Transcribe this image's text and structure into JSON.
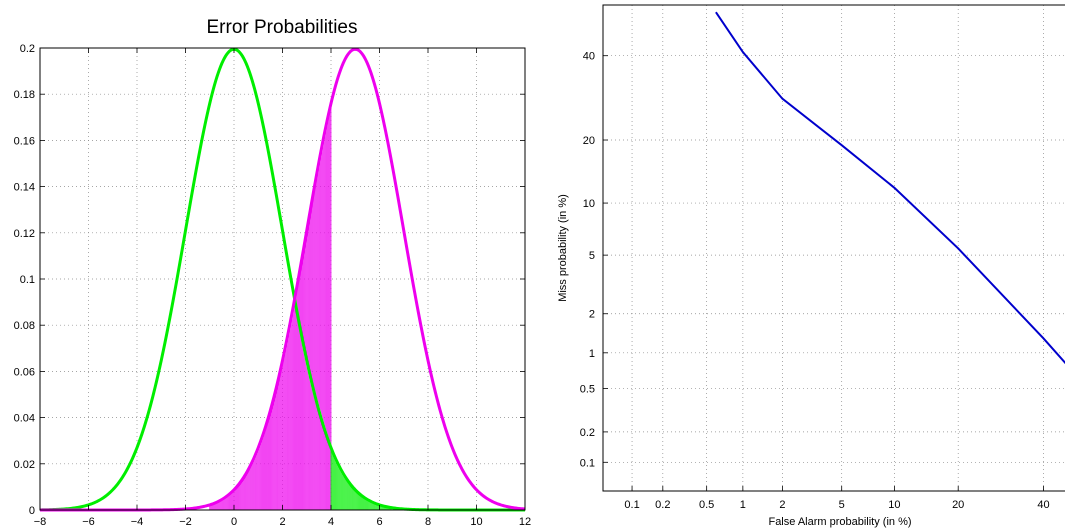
{
  "chart_data": [
    {
      "type": "line",
      "title": "Error Probabilities",
      "xlabel": "",
      "ylabel": "",
      "xlim": [
        -8,
        12
      ],
      "ylim": [
        0,
        0.2
      ],
      "grid": true,
      "xticks": [
        -8,
        -6,
        -4,
        -2,
        0,
        2,
        4,
        6,
        8,
        10,
        12
      ],
      "xtick_labels": [
        "−8",
        "−6",
        "−4",
        "−2",
        "0",
        "2",
        "4",
        "6",
        "8",
        "10",
        "12"
      ],
      "yticks": [
        0,
        0.02,
        0.04,
        0.06,
        0.08,
        0.1,
        0.12,
        0.14,
        0.16,
        0.18,
        0.2
      ],
      "ytick_labels": [
        "0",
        "0.02",
        "0.04",
        "0.06",
        "0.08",
        "0.1",
        "0.12",
        "0.14",
        "0.16",
        "0.18",
        "0.2"
      ],
      "series": [
        {
          "distribution": "normal",
          "mean": 0,
          "std": 2,
          "color": "#00ee00"
        },
        {
          "distribution": "normal",
          "mean": 5,
          "std": 2,
          "color": "#ee00ee"
        }
      ],
      "shaded_regions": [
        {
          "series_index": 1,
          "x_range": [
            -1,
            4
          ],
          "style": "vertical-lines",
          "color": "#ee00ee"
        },
        {
          "series_index": 0,
          "x_range": [
            4,
            6.5
          ],
          "style": "vertical-lines",
          "color": "#00ee00"
        }
      ]
    },
    {
      "type": "line",
      "title": "",
      "xlabel": "False Alarm probability (in %)",
      "ylabel": "Miss probability (in %)",
      "scale": "normal-deviate",
      "xlim": [
        0.05,
        48
      ],
      "ylim": [
        0.05,
        54
      ],
      "grid": true,
      "xticks": [
        0.1,
        0.2,
        0.5,
        1,
        2,
        5,
        10,
        20,
        40
      ],
      "xtick_labels": [
        "0.1",
        "0.2",
        "0.5",
        "1",
        "2",
        "5",
        "10",
        "20",
        "40"
      ],
      "yticks": [
        0.1,
        0.2,
        0.5,
        1,
        2,
        5,
        10,
        20,
        40
      ],
      "ytick_labels": [
        "0.1",
        "0.2",
        "0.5",
        "1",
        "2",
        "5",
        "10",
        "20",
        "40"
      ],
      "series": [
        {
          "color": "#0000cc",
          "x": [
            0.6,
            1,
            2,
            5,
            10,
            20,
            40,
            48
          ],
          "y": [
            52,
            41,
            29,
            19,
            12,
            5.5,
            1.3,
            0.7
          ]
        }
      ]
    }
  ]
}
